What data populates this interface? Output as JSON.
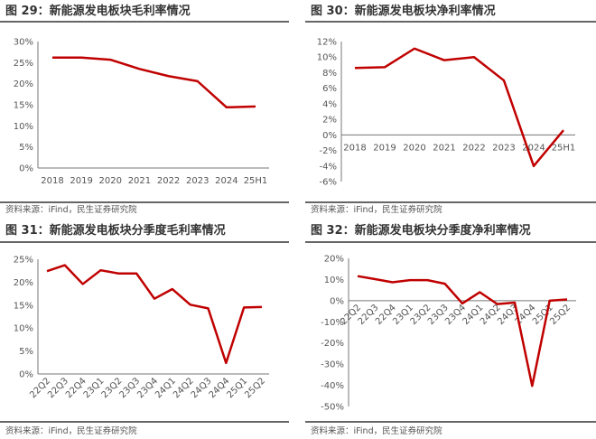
{
  "panels": [
    {
      "title": "图 29：新能源发电板块毛利率情况",
      "source": "资料来源：iFind，民生证券研究院"
    },
    {
      "title": "图 30：新能源发电板块净利率情况",
      "source": "资料来源：iFind，民生证券研究院"
    },
    {
      "title": "图 31：新能源发电板块分季度毛利率情况",
      "source": "资料来源：iFind，民生证券研究院"
    },
    {
      "title": "图 32：新能源发电板块分季度净利率情况",
      "source": "资料来源：iFind，民生证券研究院"
    }
  ],
  "chart_data": [
    {
      "type": "line",
      "categories": [
        "2018",
        "2019",
        "2020",
        "2021",
        "2022",
        "2023",
        "2024",
        "25H1"
      ],
      "values": [
        26.2,
        26.2,
        25.7,
        23.5,
        21.8,
        20.6,
        14.4,
        14.6
      ],
      "ylim": [
        0,
        30
      ],
      "yticks": [
        0,
        5,
        10,
        15,
        20,
        25,
        30
      ],
      "yunit": "%",
      "grid": false,
      "color": "#C00000"
    },
    {
      "type": "line",
      "categories": [
        "2018",
        "2019",
        "2020",
        "2021",
        "2022",
        "2023",
        "2024",
        "25H1"
      ],
      "values": [
        8.6,
        8.7,
        11.1,
        9.6,
        10.0,
        7.0,
        -4.0,
        0.6
      ],
      "ylim": [
        -6,
        12
      ],
      "yticks": [
        -6,
        -4,
        -2,
        0,
        2,
        4,
        6,
        8,
        10,
        12
      ],
      "yunit": "%",
      "grid": false,
      "color": "#C00000"
    },
    {
      "type": "line",
      "categories": [
        "22Q2",
        "22Q3",
        "22Q4",
        "23Q1",
        "23Q2",
        "23Q3",
        "23Q4",
        "24Q1",
        "24Q2",
        "24Q3",
        "24Q4",
        "25Q1",
        "25Q2"
      ],
      "values": [
        22.4,
        23.7,
        19.6,
        22.6,
        21.9,
        21.9,
        16.4,
        18.5,
        15.1,
        14.3,
        2.4,
        14.5,
        14.6
      ],
      "ylim": [
        0,
        25
      ],
      "yticks": [
        0,
        5,
        10,
        15,
        20,
        25
      ],
      "yunit": "%",
      "grid": false,
      "color": "#C00000"
    },
    {
      "type": "line",
      "categories": [
        "22Q2",
        "22Q3",
        "22Q4",
        "23Q1",
        "23Q2",
        "23Q3",
        "23Q4",
        "24Q1",
        "24Q2",
        "24Q3",
        "24Q4",
        "25Q1",
        "25Q2"
      ],
      "values": [
        11.6,
        10.2,
        8.7,
        9.7,
        9.7,
        8.0,
        -1.3,
        4.0,
        -1.6,
        -0.9,
        -40.3,
        0.0,
        0.6
      ],
      "ylim": [
        -50,
        20
      ],
      "yticks": [
        -50,
        -40,
        -30,
        -20,
        -10,
        0,
        10,
        20
      ],
      "yunit": "%",
      "grid": false,
      "color": "#C00000"
    }
  ]
}
